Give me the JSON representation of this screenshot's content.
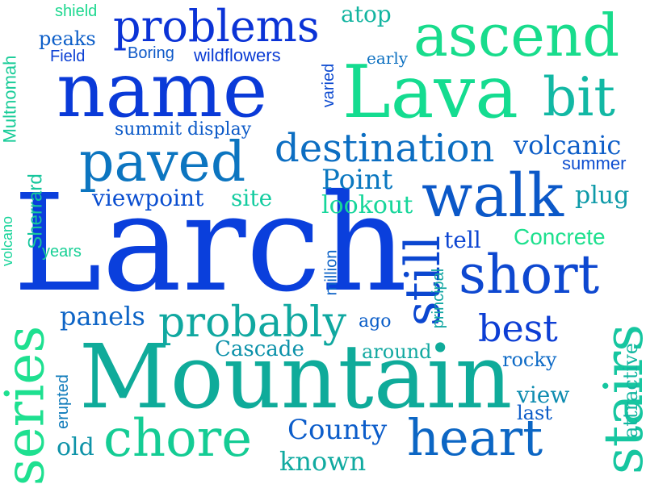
{
  "words": [
    {
      "text": "Larch",
      "color": "#0a3fdc"
    },
    {
      "text": "Mountain",
      "color": "#0fab9a"
    },
    {
      "text": "name",
      "color": "#0a3ad8"
    },
    {
      "text": "Lava",
      "color": "#14dc90"
    },
    {
      "text": "bit",
      "color": "#12b8a4"
    },
    {
      "text": "ascend",
      "color": "#18dc8c"
    },
    {
      "text": "problems",
      "color": "#0b33d6"
    },
    {
      "text": "walk",
      "color": "#0b58c8"
    },
    {
      "text": "paved",
      "color": "#0c75c0"
    },
    {
      "text": "short",
      "color": "#0e48d0"
    },
    {
      "text": "heart",
      "color": "#0c66c4"
    },
    {
      "text": "chore",
      "color": "#14cc94"
    },
    {
      "text": "series",
      "color": "#1ee090"
    },
    {
      "text": "stairs",
      "color": "#16c6a0"
    },
    {
      "text": "still",
      "color": "#0b47d0"
    },
    {
      "text": "destination",
      "color": "#0c6ec2"
    },
    {
      "text": "probably",
      "color": "#10a8a0"
    },
    {
      "text": "best",
      "color": "#0d3ed4"
    },
    {
      "text": "volcanic",
      "color": "#0d5ec8"
    },
    {
      "text": "Point",
      "color": "#0b78c0"
    },
    {
      "text": "lookout",
      "color": "#16d69a"
    },
    {
      "text": "Concrete",
      "color": "#1ee08e"
    },
    {
      "text": "viewpoint",
      "color": "#0a4ed0"
    },
    {
      "text": "site",
      "color": "#14cca0"
    },
    {
      "text": "County",
      "color": "#0c5dca"
    },
    {
      "text": "known",
      "color": "#10aaa0"
    },
    {
      "text": "old",
      "color": "#0e93a8"
    },
    {
      "text": "Cascade",
      "color": "#0d92aa"
    },
    {
      "text": "around",
      "color": "#10a8a0"
    },
    {
      "text": "panels",
      "color": "#0d64c6"
    },
    {
      "text": "attractive",
      "color": "#12b6a0"
    },
    {
      "text": "view",
      "color": "#0e8cb0"
    },
    {
      "text": "plug",
      "color": "#0d9aa8"
    },
    {
      "text": "summer",
      "color": "#0e4ed0"
    },
    {
      "text": "tell",
      "color": "#0c45d2"
    },
    {
      "text": "rocky",
      "color": "#0d6ac6"
    },
    {
      "text": "last",
      "color": "#0c5cc8"
    },
    {
      "text": "Sherrard",
      "color": "#16c69c"
    },
    {
      "text": "Multnomah",
      "color": "#18cc98"
    },
    {
      "text": "erupted",
      "color": "#0d7aba"
    },
    {
      "text": "summit display",
      "color": "#0c5ac8"
    },
    {
      "text": "wildflowers",
      "color": "#0b3cd4"
    },
    {
      "text": "Boring",
      "color": "#0d58c8"
    },
    {
      "text": "Field",
      "color": "#0c40d4"
    },
    {
      "text": "peaks",
      "color": "#0c5ec8"
    },
    {
      "text": "shield",
      "color": "#1ed890"
    },
    {
      "text": "atop",
      "color": "#12b4a0"
    },
    {
      "text": "early",
      "color": "#0c70c0"
    },
    {
      "text": "varied",
      "color": "#0c4ad0"
    },
    {
      "text": "million",
      "color": "#0c62c6"
    },
    {
      "text": "principal",
      "color": "#12a6a2"
    },
    {
      "text": "ago",
      "color": "#0b5ec8"
    },
    {
      "text": "years",
      "color": "#18d096"
    },
    {
      "text": "volcano",
      "color": "#18d49a"
    }
  ]
}
